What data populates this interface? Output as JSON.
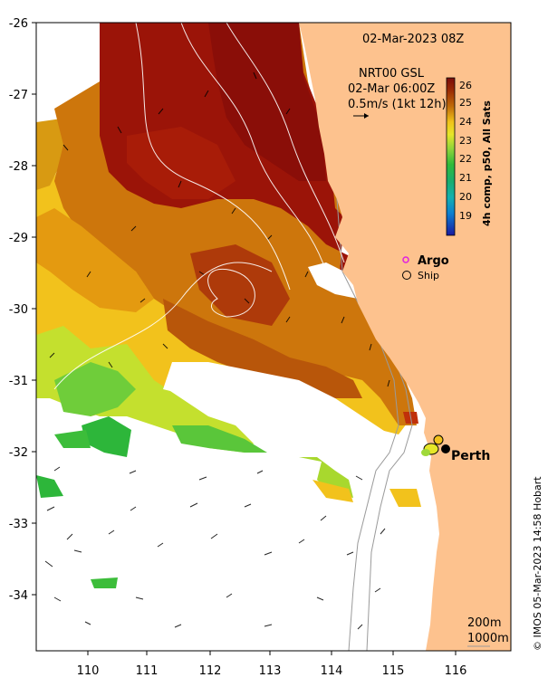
{
  "title": "02-Mar-2023 08Z",
  "product": {
    "line1": "NRT00 GSL",
    "line2": "02-Mar 06:00Z",
    "line3": "0.5m/s (1kt 12h)"
  },
  "colorbar": {
    "title": "4h comp, p50, All Sats",
    "ticks": [
      "26",
      "25",
      "24",
      "23",
      "22",
      "21",
      "20",
      "19"
    ],
    "colors": [
      "#7a0c0c",
      "#9b2c05",
      "#b85a08",
      "#d88d0c",
      "#f0c21a",
      "#e6e629",
      "#9fd93a",
      "#3cc23c",
      "#1ea85a",
      "#16b39a",
      "#0c96c8",
      "#0a4fd0",
      "#1a1aa0"
    ]
  },
  "legend": {
    "argo_label": "Argo",
    "ship_label": "Ship"
  },
  "city_label": "Perth",
  "x_axis": {
    "ticks": [
      "110",
      "111",
      "112",
      "113",
      "114",
      "115",
      "116"
    ]
  },
  "y_axis": {
    "ticks": [
      "-26",
      "-27",
      "-28",
      "-29",
      "-30",
      "-31",
      "-32",
      "-33",
      "-34"
    ]
  },
  "depth_legend": {
    "line1": "200m",
    "line2": "1000m"
  },
  "credit": "© IMOS 05-Mar-2023 14:58 Hobart",
  "colors": {
    "land": "#fdc28e",
    "sst_hot": "#9b1408",
    "sst_warm": "#c9650c",
    "sst_mid": "#f2c21c",
    "sst_cool": "#3fbd3a"
  }
}
